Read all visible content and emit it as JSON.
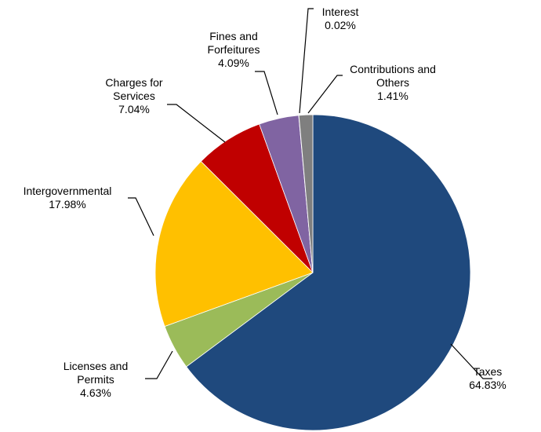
{
  "chart_data": {
    "type": "pie",
    "start_angle_deg": 0,
    "direction": "clockwise",
    "slices": [
      {
        "lines": [
          "Taxes"
        ],
        "value": 64.83,
        "label": "64.83%",
        "color": "#1F497D"
      },
      {
        "lines": [
          "Licenses and",
          "Permits"
        ],
        "value": 4.63,
        "label": "4.63%",
        "color": "#9BBB59"
      },
      {
        "lines": [
          "Intergovernmental"
        ],
        "value": 17.98,
        "label": "17.98%",
        "color": "#FFC000"
      },
      {
        "lines": [
          "Charges for",
          "Services"
        ],
        "value": 7.04,
        "label": "7.04%",
        "color": "#C00000"
      },
      {
        "lines": [
          "Fines and",
          "Forfeitures"
        ],
        "value": 4.09,
        "label": "4.09%",
        "color": "#8064A2"
      },
      {
        "lines": [
          "Interest"
        ],
        "value": 0.02,
        "label": "0.02%",
        "color": "#4F81BD"
      },
      {
        "lines": [
          "Contributions and",
          "Others"
        ],
        "value": 1.41,
        "label": "1.41%",
        "color": "#7F7F7F"
      }
    ]
  }
}
